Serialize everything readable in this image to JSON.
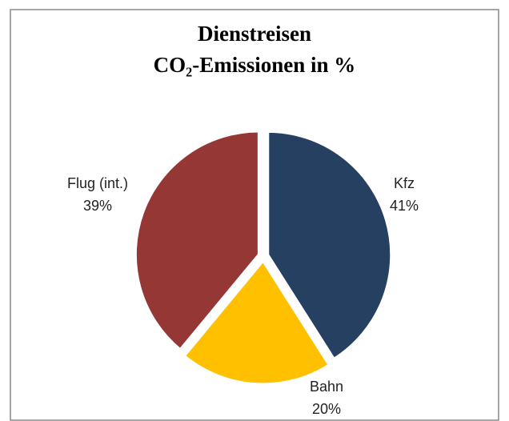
{
  "chart_data": {
    "type": "pie",
    "title": [
      "Dienstreisen",
      "CO₂-Emissionen in %"
    ],
    "categories": [
      "Kfz",
      "Bahn",
      "Flug (int.)"
    ],
    "values": [
      41,
      20,
      39
    ],
    "value_labels": [
      "41%",
      "20%",
      "39%"
    ],
    "colors": [
      "#254061",
      "#ffc000",
      "#953735"
    ]
  }
}
